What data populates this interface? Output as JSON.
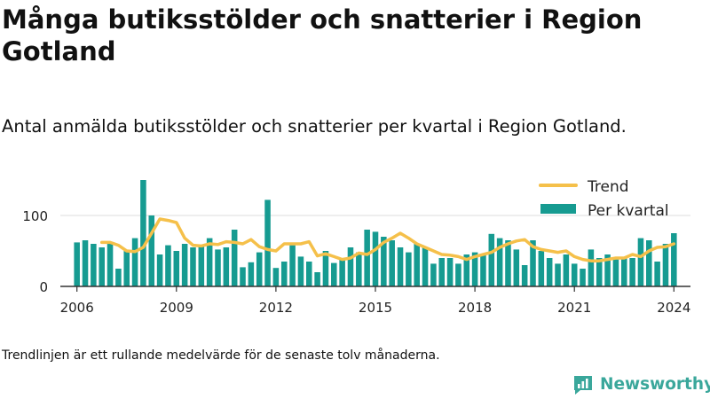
{
  "title": "Många butiksstölder och snatterier i Region Gotland",
  "subtitle": "Antal anmälda butiksstölder och snatterier per kvartal i Region Gotland.",
  "footnote": "Trendlinjen är ett rullande medelvärde för de senaste tolv månaderna.",
  "brand": "Newsworthy",
  "colors": {
    "bars": "#169b91",
    "trend": "#f5c04a",
    "axis": "#333333",
    "grid": "#dddddd",
    "brand": "#3aa79b"
  },
  "chart_data": {
    "type": "bar",
    "title": "",
    "xlabel": "",
    "ylabel": "",
    "ylim": [
      0,
      150
    ],
    "xlim": [
      2005.5,
      2024.5
    ],
    "yticks": [
      0,
      100
    ],
    "xticks": [
      2006,
      2009,
      2012,
      2015,
      2018,
      2021,
      2024
    ],
    "grid": true,
    "legend_position": "top-right",
    "legend": [
      "Trend",
      "Per kvartal"
    ],
    "x": [
      2006.0,
      2006.25,
      2006.5,
      2006.75,
      2007.0,
      2007.25,
      2007.5,
      2007.75,
      2008.0,
      2008.25,
      2008.5,
      2008.75,
      2009.0,
      2009.25,
      2009.5,
      2009.75,
      2010.0,
      2010.25,
      2010.5,
      2010.75,
      2011.0,
      2011.25,
      2011.5,
      2011.75,
      2012.0,
      2012.25,
      2012.5,
      2012.75,
      2013.0,
      2013.25,
      2013.5,
      2013.75,
      2014.0,
      2014.25,
      2014.5,
      2014.75,
      2015.0,
      2015.25,
      2015.5,
      2015.75,
      2016.0,
      2016.25,
      2016.5,
      2016.75,
      2017.0,
      2017.25,
      2017.5,
      2017.75,
      2018.0,
      2018.25,
      2018.5,
      2018.75,
      2019.0,
      2019.25,
      2019.5,
      2019.75,
      2020.0,
      2020.25,
      2020.5,
      2020.75,
      2021.0,
      2021.25,
      2021.5,
      2021.75,
      2022.0,
      2022.25,
      2022.5,
      2022.75,
      2023.0,
      2023.25,
      2023.5,
      2023.75,
      2024.0
    ],
    "series": [
      {
        "name": "Per kvartal",
        "type": "bar",
        "values": [
          62,
          65,
          60,
          55,
          60,
          25,
          50,
          68,
          150,
          100,
          45,
          58,
          50,
          60,
          55,
          58,
          68,
          52,
          55,
          80,
          27,
          34,
          48,
          122,
          26,
          35,
          58,
          42,
          35,
          20,
          50,
          33,
          40,
          55,
          48,
          80,
          77,
          70,
          65,
          55,
          48,
          60,
          55,
          32,
          40,
          40,
          32,
          45,
          48,
          45,
          74,
          68,
          65,
          52,
          30,
          65,
          50,
          40,
          32,
          45,
          32,
          25,
          52,
          40,
          45,
          38,
          40,
          40,
          68,
          65,
          35,
          60,
          75
        ]
      },
      {
        "name": "Trend",
        "type": "line",
        "x": [
          2006.75,
          2007.0,
          2007.25,
          2007.5,
          2007.75,
          2008.0,
          2008.25,
          2008.5,
          2008.75,
          2009.0,
          2009.25,
          2009.5,
          2009.75,
          2010.0,
          2010.25,
          2010.5,
          2010.75,
          2011.0,
          2011.25,
          2011.5,
          2011.75,
          2012.0,
          2012.25,
          2012.5,
          2012.75,
          2013.0,
          2013.25,
          2013.5,
          2013.75,
          2014.0,
          2014.25,
          2014.5,
          2014.75,
          2015.0,
          2015.25,
          2015.5,
          2015.75,
          2016.0,
          2016.25,
          2016.5,
          2016.75,
          2017.0,
          2017.25,
          2017.5,
          2017.75,
          2018.0,
          2018.25,
          2018.5,
          2018.75,
          2019.0,
          2019.25,
          2019.5,
          2019.75,
          2020.0,
          2020.25,
          2020.5,
          2020.75,
          2021.0,
          2021.25,
          2021.5,
          2021.75,
          2022.0,
          2022.25,
          2022.5,
          2022.75,
          2023.0,
          2023.25,
          2023.5,
          2023.75,
          2024.0
        ],
        "values": [
          62,
          62,
          58,
          50,
          49,
          55,
          75,
          95,
          93,
          90,
          68,
          58,
          57,
          60,
          59,
          63,
          62,
          60,
          66,
          56,
          52,
          50,
          60,
          60,
          60,
          63,
          43,
          46,
          42,
          38,
          40,
          47,
          45,
          52,
          62,
          68,
          75,
          68,
          60,
          55,
          50,
          45,
          44,
          42,
          38,
          42,
          45,
          48,
          55,
          60,
          64,
          66,
          56,
          52,
          50,
          48,
          50,
          42,
          38,
          36,
          36,
          38,
          40,
          40,
          45,
          42,
          50,
          55,
          56,
          60
        ]
      }
    ]
  }
}
